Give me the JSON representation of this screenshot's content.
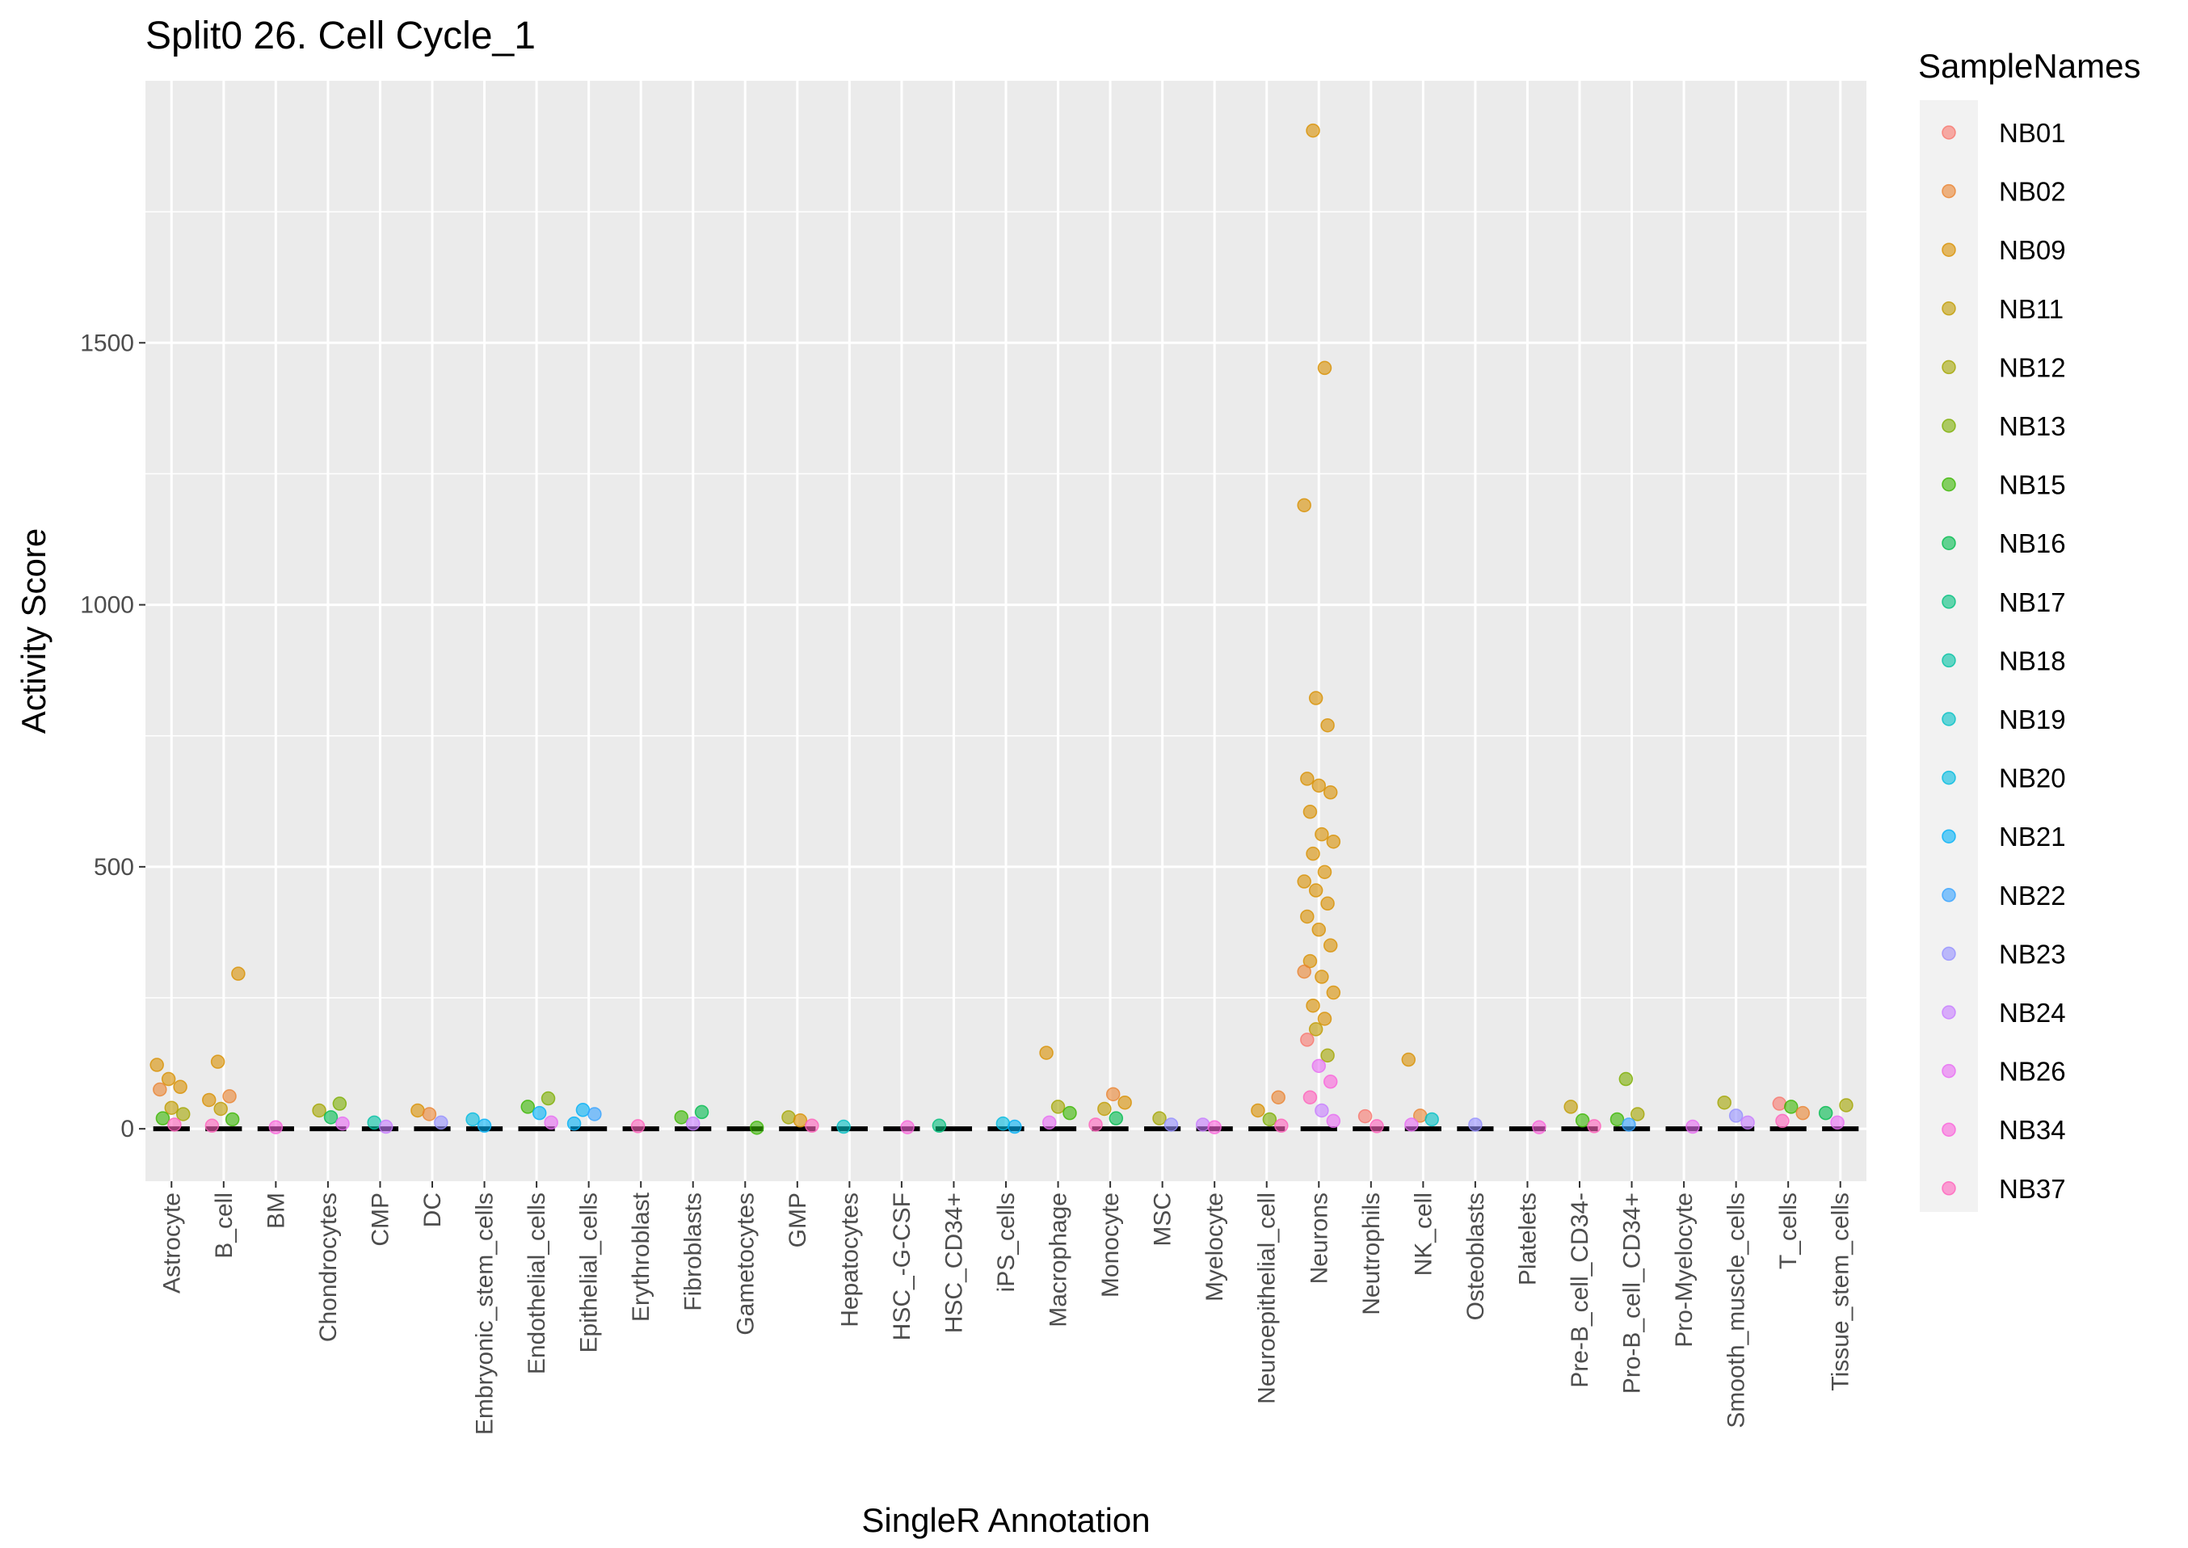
{
  "chart_data": {
    "type": "scatter",
    "subtype": "jittered strip plot with boxplots",
    "title": "Split0 26. Cell Cycle_1",
    "xlabel": "SingleR Annotation",
    "ylabel": "Activity Score",
    "ylim": [
      -100,
      2000
    ],
    "yticks": [
      0,
      500,
      1000,
      1500
    ],
    "grid": true,
    "legend": {
      "title": "SampleNames",
      "position": "right",
      "entries": [
        {
          "name": "NB01",
          "color": "#F8766D"
        },
        {
          "name": "NB02",
          "color": "#EA8331"
        },
        {
          "name": "NB09",
          "color": "#D89000"
        },
        {
          "name": "NB11",
          "color": "#C09B00"
        },
        {
          "name": "NB12",
          "color": "#A3A500"
        },
        {
          "name": "NB13",
          "color": "#7CAE00"
        },
        {
          "name": "NB15",
          "color": "#39B600"
        },
        {
          "name": "NB16",
          "color": "#00BB4E"
        },
        {
          "name": "NB17",
          "color": "#00BF7D"
        },
        {
          "name": "NB18",
          "color": "#00C1A3"
        },
        {
          "name": "NB19",
          "color": "#00BFC4"
        },
        {
          "name": "NB20",
          "color": "#00BAE0"
        },
        {
          "name": "NB21",
          "color": "#00B0F6"
        },
        {
          "name": "NB22",
          "color": "#35A2FF"
        },
        {
          "name": "NB23",
          "color": "#9590FF"
        },
        {
          "name": "NB24",
          "color": "#C77CFF"
        },
        {
          "name": "NB26",
          "color": "#E76BF3"
        },
        {
          "name": "NB34",
          "color": "#FA62DB"
        },
        {
          "name": "NB37",
          "color": "#FF62BC"
        }
      ]
    },
    "categories": [
      "Astrocyte",
      "B_cell",
      "BM",
      "Chondrocytes",
      "CMP",
      "DC",
      "Embryonic_stem_cells",
      "Endothelial_cells",
      "Epithelial_cells",
      "Erythroblast",
      "Fibroblasts",
      "Gametocytes",
      "GMP",
      "Hepatocytes",
      "HSC_-G-CSF",
      "HSC_CD34+",
      "iPS_cells",
      "Macrophage",
      "Monocyte",
      "MSC",
      "Myelocyte",
      "Neuroepithelial_cell",
      "Neurons",
      "Neutrophils",
      "NK_cell",
      "Osteoblasts",
      "Platelets",
      "Pre-B_cell_CD34-",
      "Pro-B_cell_CD34+",
      "Pro-Myelocyte",
      "Smooth_muscle_cells",
      "T_cells",
      "Tissue_stem_cells"
    ],
    "points": [
      {
        "category": "Astrocyte",
        "sample": "NB09",
        "y": 122
      },
      {
        "category": "Astrocyte",
        "sample": "NB09",
        "y": 95
      },
      {
        "category": "Astrocyte",
        "sample": "NB09",
        "y": 80
      },
      {
        "category": "Astrocyte",
        "sample": "NB02",
        "y": 75
      },
      {
        "category": "Astrocyte",
        "sample": "NB11",
        "y": 40
      },
      {
        "category": "Astrocyte",
        "sample": "NB12",
        "y": 28
      },
      {
        "category": "Astrocyte",
        "sample": "NB15",
        "y": 20
      },
      {
        "category": "Astrocyte",
        "sample": "NB37",
        "y": 8
      },
      {
        "category": "B_cell",
        "sample": "NB09",
        "y": 296
      },
      {
        "category": "B_cell",
        "sample": "NB09",
        "y": 128
      },
      {
        "category": "B_cell",
        "sample": "NB02",
        "y": 62
      },
      {
        "category": "B_cell",
        "sample": "NB09",
        "y": 55
      },
      {
        "category": "B_cell",
        "sample": "NB11",
        "y": 38
      },
      {
        "category": "B_cell",
        "sample": "NB15",
        "y": 18
      },
      {
        "category": "B_cell",
        "sample": "NB37",
        "y": 6
      },
      {
        "category": "BM",
        "sample": "NB34",
        "y": 3
      },
      {
        "category": "Chondrocytes",
        "sample": "NB13",
        "y": 48
      },
      {
        "category": "Chondrocytes",
        "sample": "NB12",
        "y": 35
      },
      {
        "category": "Chondrocytes",
        "sample": "NB16",
        "y": 22
      },
      {
        "category": "Chondrocytes",
        "sample": "NB26",
        "y": 10
      },
      {
        "category": "CMP",
        "sample": "NB18",
        "y": 12
      },
      {
        "category": "CMP",
        "sample": "NB24",
        "y": 4
      },
      {
        "category": "DC",
        "sample": "NB09",
        "y": 35
      },
      {
        "category": "DC",
        "sample": "NB02",
        "y": 28
      },
      {
        "category": "DC",
        "sample": "NB23",
        "y": 12
      },
      {
        "category": "Embryonic_stem_cells",
        "sample": "NB20",
        "y": 18
      },
      {
        "category": "Embryonic_stem_cells",
        "sample": "NB21",
        "y": 6
      },
      {
        "category": "Endothelial_cells",
        "sample": "NB13",
        "y": 58
      },
      {
        "category": "Endothelial_cells",
        "sample": "NB15",
        "y": 42
      },
      {
        "category": "Endothelial_cells",
        "sample": "NB21",
        "y": 30
      },
      {
        "category": "Endothelial_cells",
        "sample": "NB26",
        "y": 12
      },
      {
        "category": "Epithelial_cells",
        "sample": "NB21",
        "y": 36
      },
      {
        "category": "Epithelial_cells",
        "sample": "NB22",
        "y": 28
      },
      {
        "category": "Epithelial_cells",
        "sample": "NB21",
        "y": 10
      },
      {
        "category": "Erythroblast",
        "sample": "NB37",
        "y": 5
      },
      {
        "category": "Fibroblasts",
        "sample": "NB16",
        "y": 32
      },
      {
        "category": "Fibroblasts",
        "sample": "NB15",
        "y": 22
      },
      {
        "category": "Fibroblasts",
        "sample": "NB24",
        "y": 10
      },
      {
        "category": "Gametocytes",
        "sample": "NB15",
        "y": 2
      },
      {
        "category": "GMP",
        "sample": "NB12",
        "y": 22
      },
      {
        "category": "GMP",
        "sample": "NB09",
        "y": 16
      },
      {
        "category": "GMP",
        "sample": "NB37",
        "y": 6
      },
      {
        "category": "Hepatocytes",
        "sample": "NB19",
        "y": 4
      },
      {
        "category": "HSC_-G-CSF",
        "sample": "NB34",
        "y": 3
      },
      {
        "category": "HSC_CD34+",
        "sample": "NB17",
        "y": 6
      },
      {
        "category": "iPS_cells",
        "sample": "NB20",
        "y": 10
      },
      {
        "category": "iPS_cells",
        "sample": "NB21",
        "y": 4
      },
      {
        "category": "Macrophage",
        "sample": "NB09",
        "y": 145
      },
      {
        "category": "Macrophage",
        "sample": "NB12",
        "y": 42
      },
      {
        "category": "Macrophage",
        "sample": "NB15",
        "y": 30
      },
      {
        "category": "Macrophage",
        "sample": "NB26",
        "y": 12
      },
      {
        "category": "Monocyte",
        "sample": "NB02",
        "y": 66
      },
      {
        "category": "Monocyte",
        "sample": "NB09",
        "y": 50
      },
      {
        "category": "Monocyte",
        "sample": "NB11",
        "y": 38
      },
      {
        "category": "Monocyte",
        "sample": "NB16",
        "y": 20
      },
      {
        "category": "Monocyte",
        "sample": "NB37",
        "y": 8
      },
      {
        "category": "MSC",
        "sample": "NB12",
        "y": 20
      },
      {
        "category": "MSC",
        "sample": "NB23",
        "y": 8
      },
      {
        "category": "Myelocyte",
        "sample": "NB24",
        "y": 8
      },
      {
        "category": "Myelocyte",
        "sample": "NB34",
        "y": 3
      },
      {
        "category": "Neuroepithelial_cell",
        "sample": "NB02",
        "y": 60
      },
      {
        "category": "Neuroepithelial_cell",
        "sample": "NB09",
        "y": 35
      },
      {
        "category": "Neuroepithelial_cell",
        "sample": "NB13",
        "y": 18
      },
      {
        "category": "Neuroepithelial_cell",
        "sample": "NB37",
        "y": 6
      },
      {
        "category": "Neurons",
        "sample": "NB09",
        "y": 1905
      },
      {
        "category": "Neurons",
        "sample": "NB09",
        "y": 1452
      },
      {
        "category": "Neurons",
        "sample": "NB09",
        "y": 1190
      },
      {
        "category": "Neurons",
        "sample": "NB09",
        "y": 822
      },
      {
        "category": "Neurons",
        "sample": "NB09",
        "y": 770
      },
      {
        "category": "Neurons",
        "sample": "NB09",
        "y": 668
      },
      {
        "category": "Neurons",
        "sample": "NB09",
        "y": 655
      },
      {
        "category": "Neurons",
        "sample": "NB09",
        "y": 642
      },
      {
        "category": "Neurons",
        "sample": "NB09",
        "y": 605
      },
      {
        "category": "Neurons",
        "sample": "NB09",
        "y": 562
      },
      {
        "category": "Neurons",
        "sample": "NB09",
        "y": 548
      },
      {
        "category": "Neurons",
        "sample": "NB09",
        "y": 525
      },
      {
        "category": "Neurons",
        "sample": "NB09",
        "y": 490
      },
      {
        "category": "Neurons",
        "sample": "NB09",
        "y": 472
      },
      {
        "category": "Neurons",
        "sample": "NB09",
        "y": 455
      },
      {
        "category": "Neurons",
        "sample": "NB09",
        "y": 430
      },
      {
        "category": "Neurons",
        "sample": "NB09",
        "y": 405
      },
      {
        "category": "Neurons",
        "sample": "NB09",
        "y": 380
      },
      {
        "category": "Neurons",
        "sample": "NB09",
        "y": 350
      },
      {
        "category": "Neurons",
        "sample": "NB09",
        "y": 320
      },
      {
        "category": "Neurons",
        "sample": "NB09",
        "y": 290
      },
      {
        "category": "Neurons",
        "sample": "NB09",
        "y": 260
      },
      {
        "category": "Neurons",
        "sample": "NB09",
        "y": 235
      },
      {
        "category": "Neurons",
        "sample": "NB09",
        "y": 210
      },
      {
        "category": "Neurons",
        "sample": "NB02",
        "y": 300
      },
      {
        "category": "Neurons",
        "sample": "NB11",
        "y": 190
      },
      {
        "category": "Neurons",
        "sample": "NB12",
        "y": 140
      },
      {
        "category": "Neurons",
        "sample": "NB01",
        "y": 170
      },
      {
        "category": "Neurons",
        "sample": "NB26",
        "y": 120
      },
      {
        "category": "Neurons",
        "sample": "NB34",
        "y": 90
      },
      {
        "category": "Neurons",
        "sample": "NB37",
        "y": 60
      },
      {
        "category": "Neurons",
        "sample": "NB24",
        "y": 35
      },
      {
        "category": "Neurons",
        "sample": "NB26",
        "y": 15
      },
      {
        "category": "Neutrophils",
        "sample": "NB01",
        "y": 24
      },
      {
        "category": "Neutrophils",
        "sample": "NB37",
        "y": 5
      },
      {
        "category": "NK_cell",
        "sample": "NB09",
        "y": 132
      },
      {
        "category": "NK_cell",
        "sample": "NB02",
        "y": 25
      },
      {
        "category": "NK_cell",
        "sample": "NB19",
        "y": 18
      },
      {
        "category": "NK_cell",
        "sample": "NB26",
        "y": 8
      },
      {
        "category": "Osteoblasts",
        "sample": "NB23",
        "y": 8
      },
      {
        "category": "Platelets",
        "sample": "NB34",
        "y": 3
      },
      {
        "category": "Pre-B_cell_CD34-",
        "sample": "NB11",
        "y": 42
      },
      {
        "category": "Pre-B_cell_CD34-",
        "sample": "NB15",
        "y": 16
      },
      {
        "category": "Pre-B_cell_CD34-",
        "sample": "NB37",
        "y": 5
      },
      {
        "category": "Pro-B_cell_CD34+",
        "sample": "NB13",
        "y": 95
      },
      {
        "category": "Pro-B_cell_CD34+",
        "sample": "NB12",
        "y": 28
      },
      {
        "category": "Pro-B_cell_CD34+",
        "sample": "NB15",
        "y": 18
      },
      {
        "category": "Pro-B_cell_CD34+",
        "sample": "NB22",
        "y": 8
      },
      {
        "category": "Pro-Myelocyte",
        "sample": "NB26",
        "y": 4
      },
      {
        "category": "Smooth_muscle_cells",
        "sample": "NB12",
        "y": 50
      },
      {
        "category": "Smooth_muscle_cells",
        "sample": "NB23",
        "y": 25
      },
      {
        "category": "Smooth_muscle_cells",
        "sample": "NB24",
        "y": 12
      },
      {
        "category": "T_cells",
        "sample": "NB01",
        "y": 48
      },
      {
        "category": "T_cells",
        "sample": "NB15",
        "y": 42
      },
      {
        "category": "T_cells",
        "sample": "NB02",
        "y": 30
      },
      {
        "category": "T_cells",
        "sample": "NB37",
        "y": 15
      },
      {
        "category": "Tissue_stem_cells",
        "sample": "NB12",
        "y": 45
      },
      {
        "category": "Tissue_stem_cells",
        "sample": "NB16",
        "y": 30
      },
      {
        "category": "Tissue_stem_cells",
        "sample": "NB26",
        "y": 12
      }
    ]
  }
}
